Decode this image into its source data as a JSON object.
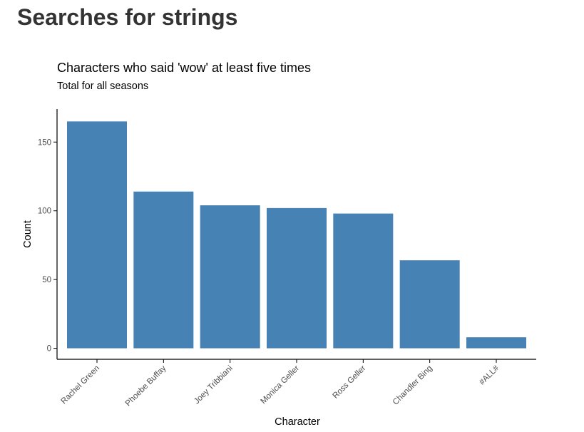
{
  "page": {
    "heading": "Searches for strings"
  },
  "colors": {
    "bar": "#4682b4",
    "axis": "#000000",
    "tick_label": "#4d4d4d"
  },
  "chart_data": {
    "type": "bar",
    "title": "Characters who said 'wow' at least five times",
    "subtitle": "Total for all seasons",
    "xlabel": "Character",
    "ylabel": "Count",
    "categories": [
      "Rachel Green",
      "Phoebe Buffay",
      "Joey Tribbiani",
      "Monica Geller",
      "Ross Geller",
      "Chandler Bing",
      "#ALL#"
    ],
    "values": [
      165,
      114,
      104,
      102,
      98,
      64,
      8
    ],
    "ylim": [
      -8,
      174
    ],
    "yticks": [
      0,
      50,
      100,
      150
    ],
    "grid": false,
    "legend": "none"
  }
}
